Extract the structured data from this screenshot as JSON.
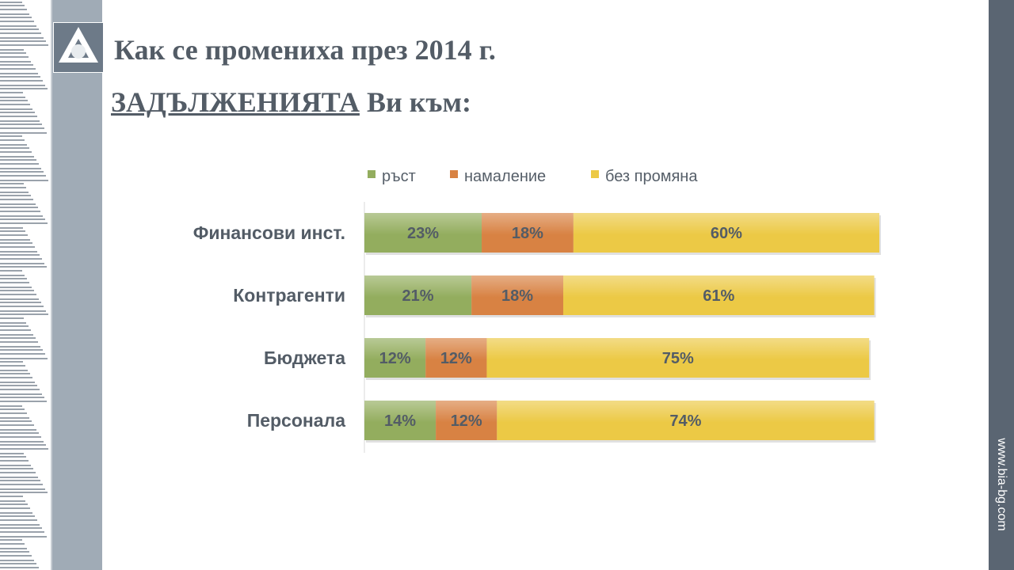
{
  "slide": {
    "title": "Как се промениха през 2014 г.",
    "subtitle_underlined": "ЗАДЪЛЖЕНИЯТА",
    "subtitle_rest": " Ви към:",
    "website": "www.bia-bg.com"
  },
  "colors": {
    "growth": "#93ad5e",
    "decrease": "#d88243",
    "nochange": "#ecc945",
    "text": "#535c66",
    "band": "#a0abb6",
    "right_band": "#5a6572"
  },
  "chart_data": {
    "type": "bar",
    "orientation": "horizontal",
    "stacked": true,
    "legend_position": "top",
    "categories": [
      "Финансови инст.",
      "Контрагенти",
      "Бюджета",
      "Персонала"
    ],
    "series": [
      {
        "name": "ръст",
        "values": [
          23,
          21,
          12,
          14
        ],
        "labels": [
          "23%",
          "21%",
          "12%",
          "14%"
        ]
      },
      {
        "name": "намаление",
        "values": [
          18,
          18,
          12,
          12
        ],
        "labels": [
          "18%",
          "18%",
          "12%",
          "12%"
        ]
      },
      {
        "name": "без промяна",
        "values": [
          60,
          61,
          75,
          74
        ],
        "labels": [
          "60%",
          "61%",
          "75%",
          "74%"
        ]
      }
    ],
    "xlim": [
      0,
      101
    ],
    "grid": false
  }
}
